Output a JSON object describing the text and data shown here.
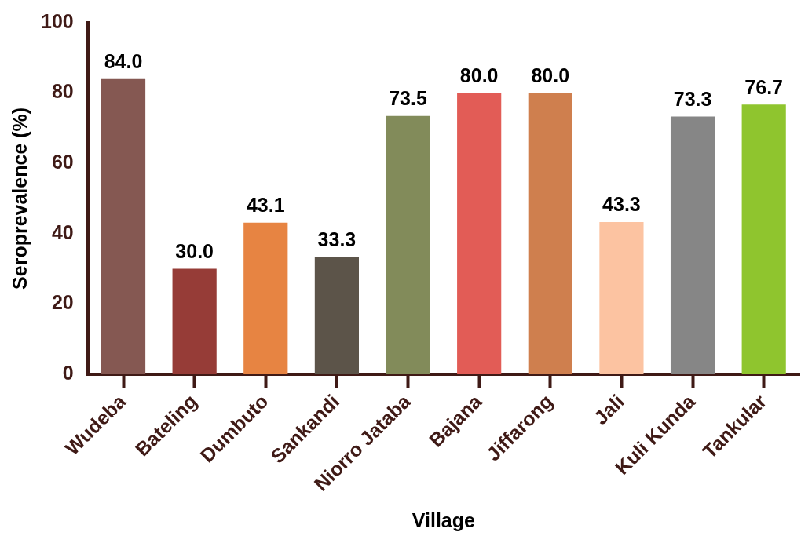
{
  "chart_data": {
    "type": "bar",
    "xlabel": "Village",
    "ylabel": "Seroprevalence (%)",
    "categories": [
      "Wudeba",
      "Bateling",
      "Dumbuto",
      "Sankandi",
      "Niorro Jataba",
      "Bajana",
      "Jiffarong",
      "Jali",
      "Kuli Kunda",
      "Tankular"
    ],
    "values": [
      84.0,
      30.0,
      43.1,
      33.3,
      73.5,
      80.0,
      80.0,
      43.3,
      73.3,
      76.7
    ],
    "colors": [
      "#855852",
      "#963c37",
      "#e78442",
      "#5c5449",
      "#828b5a",
      "#e25c56",
      "#cf7f4e",
      "#fcc3a1",
      "#868686",
      "#8fc52e"
    ],
    "value_labels": [
      "84.0",
      "30.0",
      "43.1",
      "33.3",
      "73.5",
      "80.0",
      "80.0",
      "43.3",
      "73.3",
      "76.7"
    ],
    "ylim": [
      0,
      100
    ],
    "yticks": [
      0,
      20,
      40,
      60,
      80,
      100
    ],
    "grid": false,
    "legend": false
  }
}
